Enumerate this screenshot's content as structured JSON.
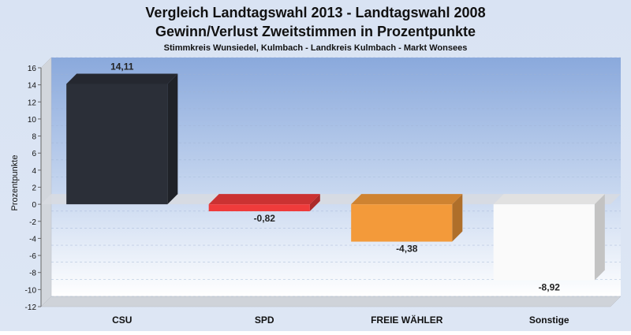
{
  "chart_data": {
    "type": "bar",
    "title": "Vergleich Landtagswahl 2013 - Landtagswahl 2008",
    "subtitle_line2": "Gewinn/Verlust Zweitstimmen in Prozentpunkte",
    "subtitle": "Stimmkreis Wunsiedel, Kulmbach - Landkreis Kulmbach - Markt Wonsees",
    "ylabel": "Prozentpunkte",
    "xlabel": "",
    "categories": [
      "CSU",
      "SPD",
      "FREIE WÄHLER",
      "Sonstige"
    ],
    "values": [
      14.11,
      -0.82,
      -4.38,
      -8.92
    ],
    "value_labels": [
      "14,11",
      "-0,82",
      "-4,38",
      "-8,92"
    ],
    "colors": [
      "#2b2f38",
      "#ef3b3b",
      "#f39a3a",
      "#fafafa"
    ],
    "ylim": [
      -12,
      16
    ],
    "yticks": [
      16,
      14,
      12,
      10,
      8,
      6,
      4,
      2,
      0,
      -2,
      -4,
      -6,
      -8,
      -10,
      -12
    ],
    "grid": true,
    "legend": "none",
    "style": "3d"
  }
}
